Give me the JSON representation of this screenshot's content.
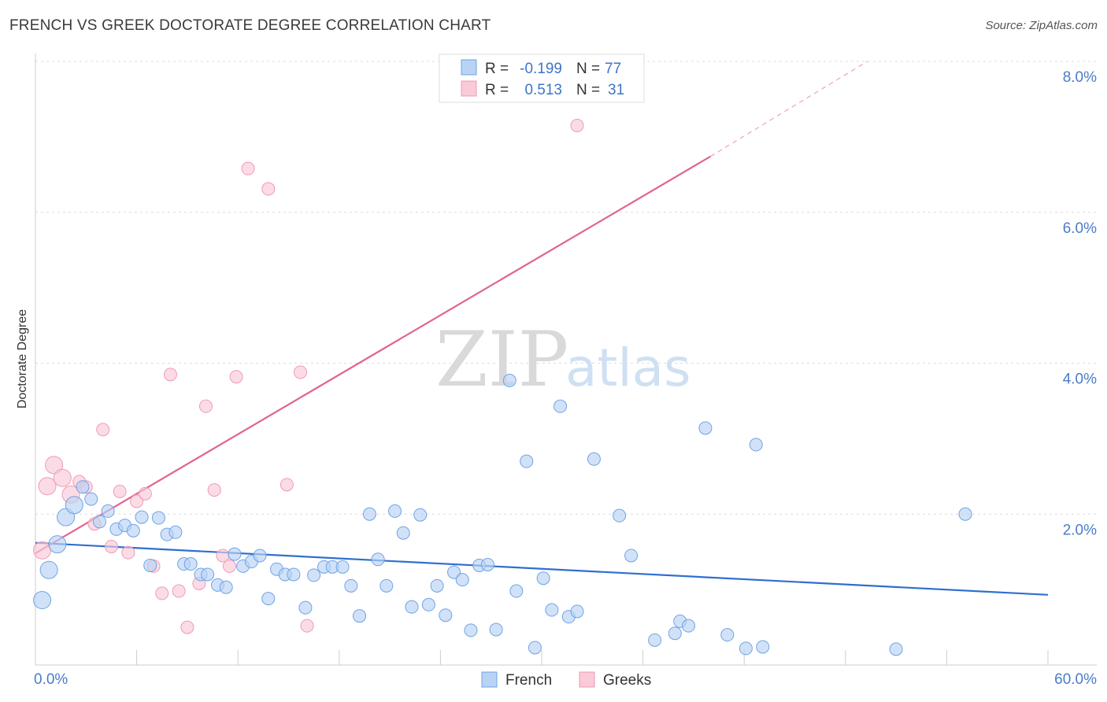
{
  "title": "FRENCH VS GREEK DOCTORATE DEGREE CORRELATION CHART",
  "source": "Source: ZipAtlas.com",
  "watermark": {
    "zip": "ZIP",
    "atlas": "atlas"
  },
  "colors": {
    "french": "#6fa3e6",
    "french_fill": "#b9d3f4",
    "greeks": "#f09ab5",
    "greeks_fill": "#f9cad8",
    "french_line": "#2f6fcf",
    "greeks_line": "#e06590"
  },
  "legend": {
    "rows": [
      {
        "r_label": "R =",
        "r_value": "-0.199",
        "n_label": "N =",
        "n_value": "77"
      },
      {
        "r_label": "R =",
        "r_value": "0.513",
        "n_label": "N =",
        "n_value": "31"
      }
    ]
  },
  "bottom_legend": {
    "french": "French",
    "greeks": "Greeks"
  },
  "chart_data": {
    "type": "scatter",
    "ylabel": "Doctorate Degree",
    "xlim": [
      0,
      60
    ],
    "ylim": [
      0,
      8
    ],
    "x_tick_labels": [
      "0.0%",
      "60.0%"
    ],
    "y_ticks": [
      2,
      4,
      6,
      8
    ],
    "y_tick_labels": [
      "2.0%",
      "4.0%",
      "6.0%",
      "8.0%"
    ],
    "grid": true,
    "series": [
      {
        "name": "French",
        "trend": {
          "x0": 0,
          "y0": 1.62,
          "x1": 60,
          "y1": 0.93
        },
        "points": [
          [
            0.4,
            0.86
          ],
          [
            0.8,
            1.26
          ],
          [
            1.3,
            1.6
          ],
          [
            1.8,
            1.96
          ],
          [
            2.3,
            2.12
          ],
          [
            2.8,
            2.36
          ],
          [
            3.3,
            2.2
          ],
          [
            3.8,
            1.9
          ],
          [
            4.3,
            2.04
          ],
          [
            4.8,
            1.8
          ],
          [
            5.3,
            1.85
          ],
          [
            5.8,
            1.78
          ],
          [
            6.3,
            1.96
          ],
          [
            6.8,
            1.32
          ],
          [
            7.3,
            1.95
          ],
          [
            7.8,
            1.73
          ],
          [
            8.3,
            1.76
          ],
          [
            8.8,
            1.34
          ],
          [
            9.2,
            1.34
          ],
          [
            9.8,
            1.2
          ],
          [
            10.2,
            1.2
          ],
          [
            10.8,
            1.06
          ],
          [
            11.3,
            1.03
          ],
          [
            11.8,
            1.47
          ],
          [
            12.3,
            1.31
          ],
          [
            12.8,
            1.37
          ],
          [
            13.3,
            1.45
          ],
          [
            13.8,
            0.88
          ],
          [
            14.3,
            1.27
          ],
          [
            14.8,
            1.2
          ],
          [
            15.3,
            1.2
          ],
          [
            16,
            0.76
          ],
          [
            16.5,
            1.19
          ],
          [
            17.1,
            1.3
          ],
          [
            17.6,
            1.3
          ],
          [
            18.2,
            1.3
          ],
          [
            18.7,
            1.05
          ],
          [
            19.2,
            0.65
          ],
          [
            19.8,
            2.0
          ],
          [
            20.3,
            1.4
          ],
          [
            20.8,
            1.05
          ],
          [
            21.3,
            2.04
          ],
          [
            21.8,
            1.75
          ],
          [
            22.3,
            0.77
          ],
          [
            22.8,
            1.99
          ],
          [
            23.3,
            0.8
          ],
          [
            23.8,
            1.05
          ],
          [
            24.3,
            0.66
          ],
          [
            24.8,
            1.23
          ],
          [
            25.3,
            1.13
          ],
          [
            25.8,
            0.46
          ],
          [
            26.3,
            1.32
          ],
          [
            26.8,
            1.33
          ],
          [
            27.3,
            0.47
          ],
          [
            28.1,
            3.77
          ],
          [
            28.5,
            0.98
          ],
          [
            29.1,
            2.7
          ],
          [
            29.6,
            0.23
          ],
          [
            30.1,
            1.15
          ],
          [
            30.6,
            0.73
          ],
          [
            31.1,
            3.43
          ],
          [
            31.6,
            0.64
          ],
          [
            32.1,
            0.71
          ],
          [
            33.1,
            2.73
          ],
          [
            34.6,
            1.98
          ],
          [
            35.3,
            1.45
          ],
          [
            36.7,
            0.33
          ],
          [
            37.9,
            0.42
          ],
          [
            38.2,
            0.58
          ],
          [
            38.7,
            0.52
          ],
          [
            39.7,
            3.14
          ],
          [
            41,
            0.4
          ],
          [
            42.1,
            0.22
          ],
          [
            42.7,
            2.92
          ],
          [
            43.1,
            0.24
          ],
          [
            51,
            0.21
          ],
          [
            55.1,
            2.0
          ]
        ]
      },
      {
        "name": "Greeks",
        "trend": {
          "x0": 0,
          "y0": 1.48,
          "x1": 40,
          "y1": 6.74,
          "x2": 49.3,
          "y2": 8.0
        },
        "points": [
          [
            0.4,
            1.52
          ],
          [
            0.7,
            2.37
          ],
          [
            1.1,
            2.65
          ],
          [
            1.6,
            2.48
          ],
          [
            2.1,
            2.26
          ],
          [
            2.6,
            2.43
          ],
          [
            3.0,
            2.36
          ],
          [
            3.5,
            1.87
          ],
          [
            4.0,
            3.12
          ],
          [
            4.5,
            1.57
          ],
          [
            5.0,
            2.3
          ],
          [
            5.5,
            1.49
          ],
          [
            6.0,
            2.17
          ],
          [
            6.5,
            2.27
          ],
          [
            7.0,
            1.31
          ],
          [
            7.5,
            0.95
          ],
          [
            8.0,
            3.85
          ],
          [
            8.5,
            0.98
          ],
          [
            9.0,
            0.5
          ],
          [
            9.7,
            1.08
          ],
          [
            10.1,
            3.43
          ],
          [
            10.6,
            2.32
          ],
          [
            11.1,
            1.45
          ],
          [
            11.5,
            1.31
          ],
          [
            11.9,
            3.82
          ],
          [
            12.6,
            6.58
          ],
          [
            13.8,
            6.31
          ],
          [
            14.9,
            2.39
          ],
          [
            15.7,
            3.88
          ],
          [
            16.1,
            0.52
          ],
          [
            32.1,
            7.15
          ]
        ]
      }
    ]
  }
}
